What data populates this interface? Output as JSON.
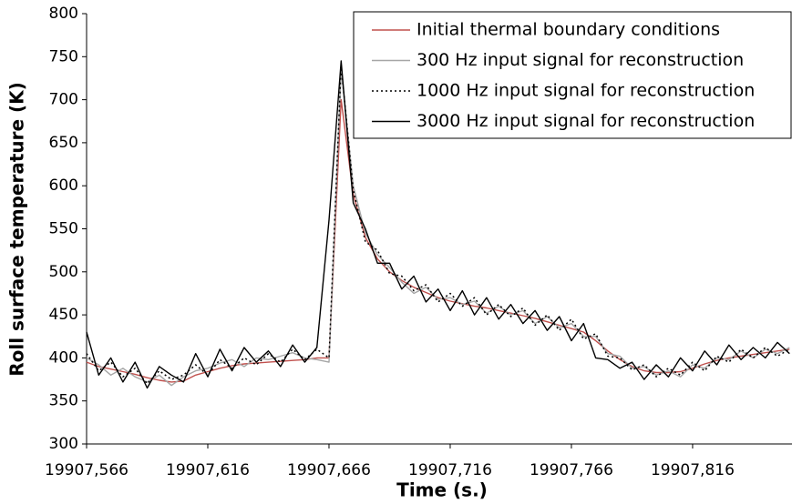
{
  "chart_data": {
    "type": "line",
    "x_label": "Time (s.)",
    "y_label": "Roll surface temperature (K)",
    "xlim": [
      19907.566,
      19907.857
    ],
    "ylim": [
      300,
      800
    ],
    "xticks": [
      {
        "value": 19907.566,
        "label": "19907,566"
      },
      {
        "value": 19907.616,
        "label": "19907,616"
      },
      {
        "value": 19907.666,
        "label": "19907,666"
      },
      {
        "value": 19907.716,
        "label": "19907,716"
      },
      {
        "value": 19907.766,
        "label": "19907,766"
      },
      {
        "value": 19907.816,
        "label": "19907,816"
      }
    ],
    "yticks": [
      300,
      350,
      400,
      450,
      500,
      550,
      600,
      650,
      700,
      750,
      800
    ],
    "grid": false,
    "legend": "top-right",
    "x": [
      19907.566,
      19907.571,
      19907.576,
      19907.581,
      19907.586,
      19907.591,
      19907.596,
      19907.601,
      19907.606,
      19907.611,
      19907.616,
      19907.621,
      19907.626,
      19907.631,
      19907.636,
      19907.641,
      19907.646,
      19907.651,
      19907.656,
      19907.661,
      19907.666,
      19907.671,
      19907.676,
      19907.681,
      19907.686,
      19907.691,
      19907.696,
      19907.701,
      19907.706,
      19907.711,
      19907.716,
      19907.721,
      19907.726,
      19907.731,
      19907.736,
      19907.741,
      19907.746,
      19907.751,
      19907.756,
      19907.761,
      19907.766,
      19907.771,
      19907.776,
      19907.781,
      19907.786,
      19907.791,
      19907.796,
      19907.801,
      19907.806,
      19907.811,
      19907.816,
      19907.821,
      19907.826,
      19907.831,
      19907.836,
      19907.841,
      19907.846,
      19907.851,
      19907.856
    ],
    "series": [
      {
        "name": "Initial thermal boundary conditions",
        "color": "#c0504d",
        "style": "solid",
        "values": [
          395,
          390,
          387,
          384,
          381,
          377,
          374,
          372,
          373,
          380,
          384,
          388,
          391,
          393,
          394,
          395,
          396,
          397,
          398,
          400,
          400,
          700,
          590,
          540,
          515,
          500,
          490,
          482,
          476,
          470,
          466,
          463,
          460,
          458,
          455,
          452,
          449,
          446,
          442,
          438,
          434,
          430,
          420,
          408,
          398,
          390,
          385,
          383,
          383,
          384,
          388,
          393,
          397,
          400,
          402,
          404,
          406,
          408,
          410
        ]
      },
      {
        "name": "300 Hz input signal for reconstruction",
        "color": "#a6a6a6",
        "style": "solid",
        "values": [
          400,
          392,
          380,
          388,
          378,
          372,
          380,
          368,
          378,
          385,
          388,
          394,
          398,
          390,
          400,
          398,
          402,
          406,
          400,
          398,
          395,
          735,
          600,
          545,
          520,
          505,
          488,
          475,
          482,
          468,
          470,
          462,
          466,
          452,
          460,
          450,
          455,
          440,
          448,
          435,
          440,
          425,
          425,
          405,
          402,
          388,
          390,
          380,
          385,
          378,
          392,
          388,
          400,
          398,
          408,
          400,
          410,
          405,
          412
        ]
      },
      {
        "name": "1000 Hz input signal for reconstruction",
        "color": "#000000",
        "style": "dotted",
        "values": [
          405,
          385,
          395,
          378,
          388,
          370,
          385,
          375,
          380,
          392,
          380,
          398,
          388,
          400,
          392,
          405,
          395,
          410,
          398,
          410,
          400,
          740,
          595,
          535,
          525,
          498,
          495,
          478,
          485,
          465,
          475,
          460,
          470,
          450,
          462,
          448,
          458,
          438,
          450,
          432,
          445,
          422,
          428,
          402,
          400,
          386,
          392,
          378,
          388,
          380,
          395,
          385,
          402,
          395,
          410,
          400,
          412,
          402,
          410
        ]
      },
      {
        "name": "3000 Hz input signal for reconstruction",
        "color": "#000000",
        "style": "solid",
        "values": [
          430,
          380,
          400,
          372,
          395,
          365,
          390,
          380,
          372,
          405,
          378,
          410,
          385,
          412,
          395,
          408,
          390,
          415,
          395,
          412,
          560,
          745,
          580,
          550,
          510,
          510,
          480,
          495,
          465,
          480,
          455,
          478,
          450,
          470,
          445,
          462,
          440,
          455,
          432,
          448,
          420,
          440,
          400,
          398,
          388,
          395,
          375,
          392,
          378,
          400,
          385,
          408,
          392,
          415,
          398,
          412,
          400,
          418,
          405
        ]
      }
    ]
  }
}
